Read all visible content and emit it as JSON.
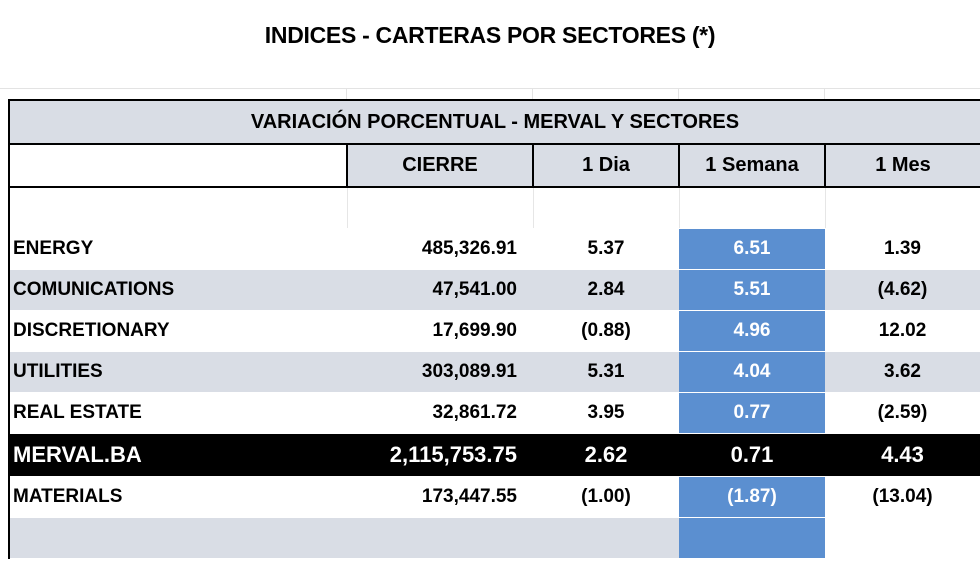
{
  "title": "INDICES - CARTERAS POR SECTORES (*)",
  "table": {
    "caption": "VARIACIÓN PORCENTUAL - MERVAL Y SECTORES",
    "columns": [
      "",
      "CIERRE",
      "1 Dia",
      "1 Semana",
      "1 Mes"
    ],
    "rows": [
      {
        "name": "ENERGY",
        "cierre": "485,326.91",
        "dia": "5.37",
        "semana": "6.51",
        "mes": "1.39"
      },
      {
        "name": "COMUNICATIONS",
        "cierre": "47,541.00",
        "dia": "2.84",
        "semana": "5.51",
        "mes": "(4.62)"
      },
      {
        "name": "DISCRETIONARY",
        "cierre": "17,699.90",
        "dia": "(0.88)",
        "semana": "4.96",
        "mes": "12.02"
      },
      {
        "name": "UTILITIES",
        "cierre": "303,089.91",
        "dia": "5.31",
        "semana": "4.04",
        "mes": "3.62"
      },
      {
        "name": "REAL ESTATE",
        "cierre": "32,861.72",
        "dia": "3.95",
        "semana": "0.77",
        "mes": "(2.59)"
      },
      {
        "name": "MERVAL.BA",
        "cierre": "2,115,753.75",
        "dia": "2.62",
        "semana": "0.71",
        "mes": "4.43"
      },
      {
        "name": "MATERIALS",
        "cierre": "173,447.55",
        "dia": "(1.00)",
        "semana": "(1.87)",
        "mes": "(13.04)"
      }
    ]
  },
  "colors": {
    "header_bg": "#d9dde5",
    "highlight_blue": "#5b8fd0",
    "merval_bg": "#000000"
  }
}
